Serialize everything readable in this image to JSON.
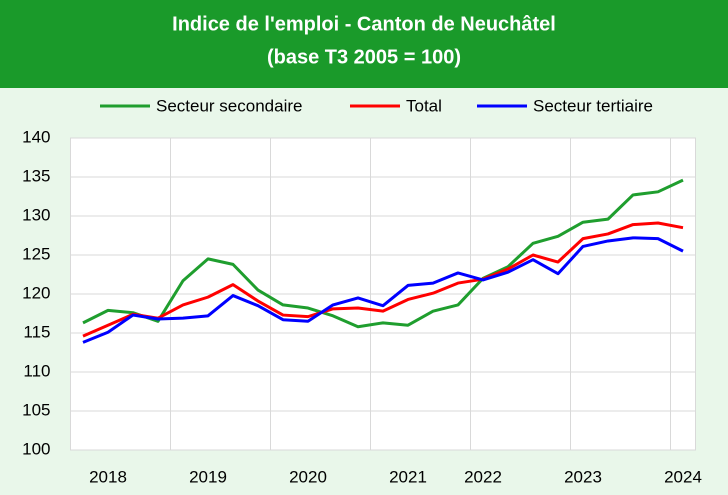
{
  "chart_data": {
    "type": "line",
    "title": "Indice de l'emploi - Canton de Neuchâtel",
    "subtitle": "(base T3 2005 = 100)",
    "categories": [
      null,
      "2018",
      null,
      null,
      null,
      "2019",
      null,
      null,
      null,
      "2020",
      null,
      null,
      null,
      "2021",
      null,
      null,
      "2022",
      null,
      null,
      null,
      "2023",
      null,
      null,
      null,
      "2024"
    ],
    "series": [
      {
        "name": "Secteur secondaire",
        "color": "#1f9e2e",
        "values": [
          116.3,
          117.9,
          117.6,
          116.5,
          121.7,
          124.5,
          123.8,
          120.5,
          118.6,
          118.2,
          117.2,
          115.8,
          116.3,
          116.0,
          117.8,
          118.6,
          122.0,
          123.5,
          126.5,
          127.4,
          129.2,
          129.6,
          132.7,
          133.1,
          134.6
        ]
      },
      {
        "name": "Total",
        "color": "#ff0000",
        "values": [
          114.6,
          116.0,
          117.4,
          116.9,
          118.6,
          119.6,
          121.2,
          119.1,
          117.3,
          117.1,
          118.1,
          118.2,
          117.8,
          119.3,
          120.1,
          121.4,
          121.9,
          123.2,
          125.0,
          124.1,
          127.1,
          127.7,
          128.9,
          129.1,
          128.5
        ]
      },
      {
        "name": "Secteur tertiaire",
        "color": "#0000ff",
        "values": [
          113.8,
          115.1,
          117.3,
          116.8,
          116.9,
          117.2,
          119.8,
          118.5,
          116.7,
          116.5,
          118.6,
          119.5,
          118.5,
          121.1,
          121.4,
          122.7,
          121.8,
          122.8,
          124.4,
          122.6,
          126.1,
          126.8,
          127.2,
          127.1,
          125.5
        ]
      }
    ],
    "ylim": [
      100,
      140
    ],
    "yticks": [
      100,
      105,
      110,
      115,
      120,
      125,
      130,
      135,
      140
    ],
    "grid": true
  }
}
